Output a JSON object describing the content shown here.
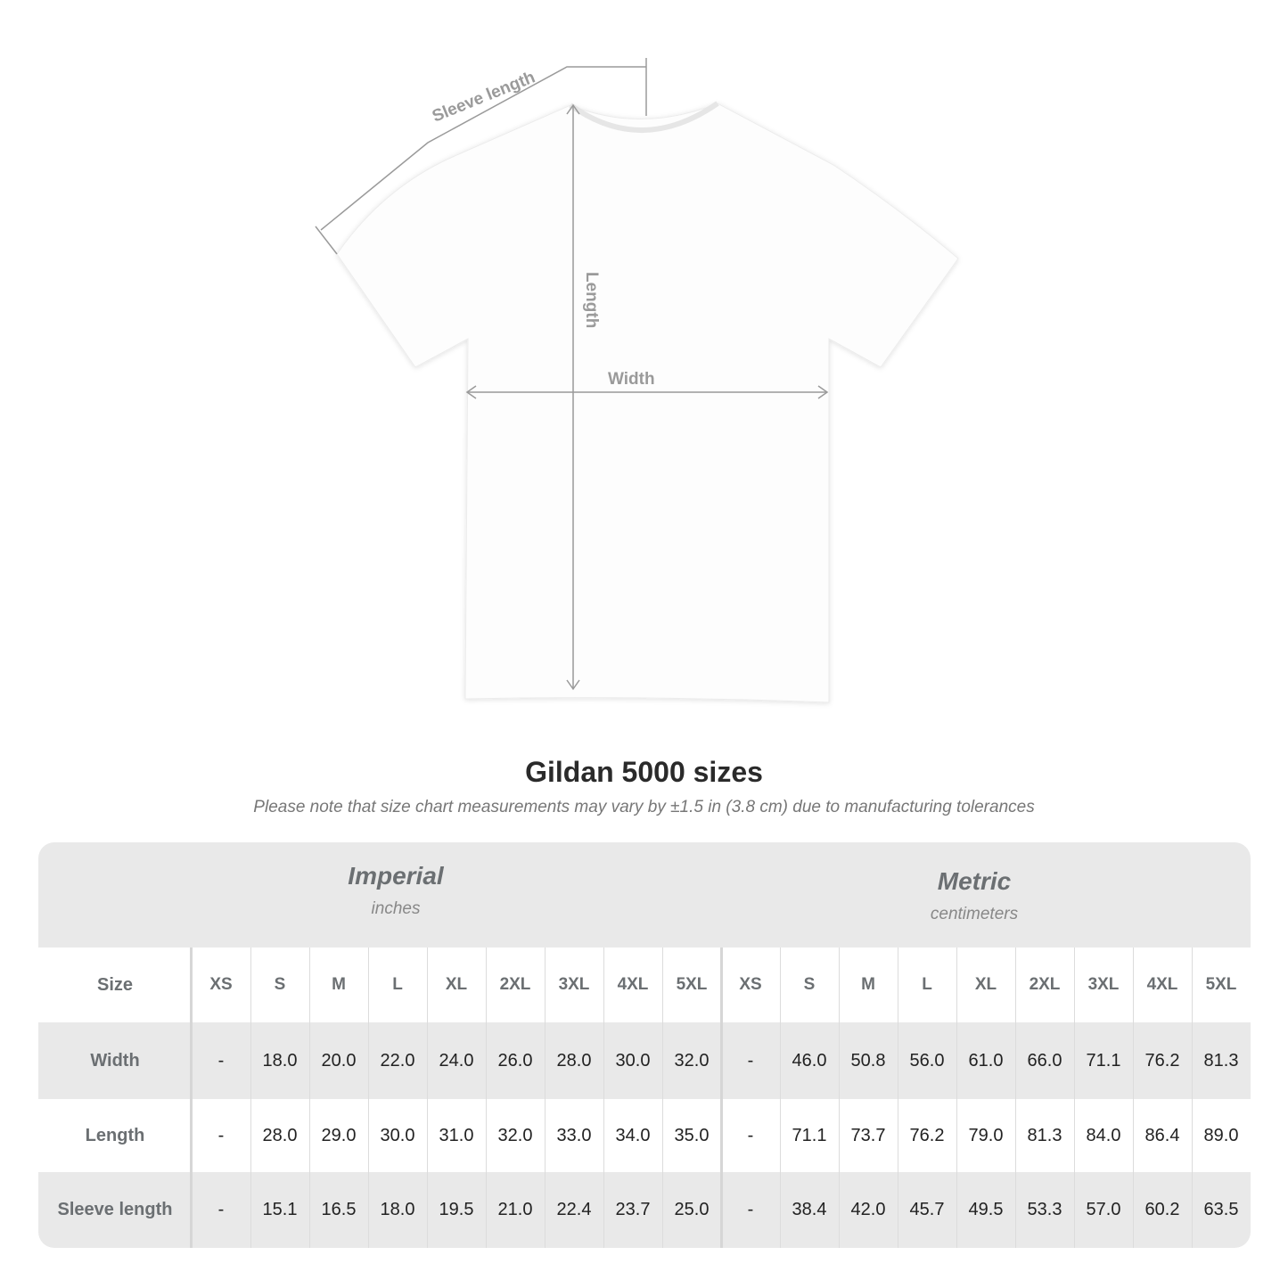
{
  "diagram": {
    "labels": {
      "sleeve_length": "Sleeve length",
      "length": "Length",
      "width": "Width"
    },
    "line_color": "#9a9a9a"
  },
  "title": "Gildan 5000 sizes",
  "subtitle": "Please note that size chart measurements may vary by ±1.5 in (3.8 cm) due to manufacturing tolerances",
  "table": {
    "imperial": {
      "name": "Imperial",
      "unit": "inches"
    },
    "metric": {
      "name": "Metric",
      "unit": "centimeters"
    },
    "size_label": "Size",
    "sizes": [
      "XS",
      "S",
      "M",
      "L",
      "XL",
      "2XL",
      "3XL",
      "4XL",
      "5XL"
    ],
    "rows": [
      {
        "label": "Width",
        "imperial": [
          "-",
          "18.0",
          "20.0",
          "22.0",
          "24.0",
          "26.0",
          "28.0",
          "30.0",
          "32.0"
        ],
        "metric": [
          "-",
          "46.0",
          "50.8",
          "56.0",
          "61.0",
          "66.0",
          "71.1",
          "76.2",
          "81.3"
        ]
      },
      {
        "label": "Length",
        "imperial": [
          "-",
          "28.0",
          "29.0",
          "30.0",
          "31.0",
          "32.0",
          "33.0",
          "34.0",
          "35.0"
        ],
        "metric": [
          "-",
          "71.1",
          "73.7",
          "76.2",
          "79.0",
          "81.3",
          "84.0",
          "86.4",
          "89.0"
        ]
      },
      {
        "label": "Sleeve length",
        "imperial": [
          "-",
          "15.1",
          "16.5",
          "18.0",
          "19.5",
          "21.0",
          "22.4",
          "23.7",
          "25.0"
        ],
        "metric": [
          "-",
          "38.4",
          "42.0",
          "45.7",
          "49.5",
          "53.3",
          "57.0",
          "60.2",
          "63.5"
        ]
      }
    ],
    "band_color": "#e9e9e9"
  }
}
